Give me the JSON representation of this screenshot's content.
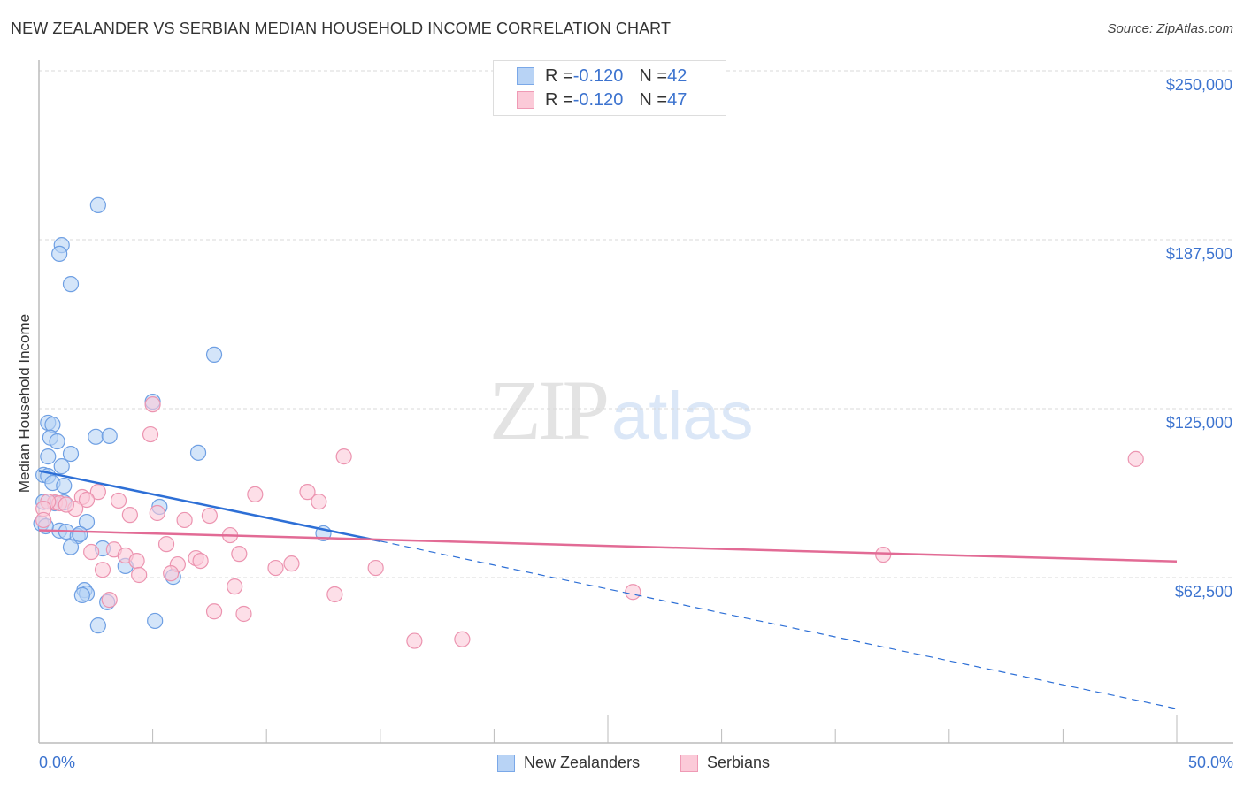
{
  "header": {
    "title": "NEW ZEALANDER VS SERBIAN MEDIAN HOUSEHOLD INCOME CORRELATION CHART",
    "source": "Source: ZipAtlas.com"
  },
  "watermark": {
    "zip": "ZIP",
    "atlas": "atlas"
  },
  "legend_top": {
    "rows": [
      {
        "series": "New Zealanders",
        "r_label": "R = ",
        "r_value": "-0.120",
        "n_label": "N = ",
        "n_value": "42",
        "color": "#b8d3f5"
      },
      {
        "series": "Serbians",
        "r_label": "R = ",
        "r_value": "-0.120",
        "n_label": "N = ",
        "n_value": "47",
        "color": "#fbcad8"
      }
    ]
  },
  "legend_bottom": {
    "items": [
      {
        "label": "New Zealanders",
        "color": "#b8d3f5"
      },
      {
        "label": "Serbians",
        "color": "#fbcad8"
      }
    ]
  },
  "axes": {
    "ylabel": "Median Household Income",
    "y_ticks": [
      "$250,000",
      "$187,500",
      "$125,000",
      "$62,500"
    ],
    "x_ticks": [
      "0.0%",
      "50.0%"
    ]
  },
  "colors": {
    "blue_fill": "#b8d3f5",
    "blue_stroke": "#6e9fe3",
    "blue_line": "#2d6fd6",
    "pink_fill": "#fbcad8",
    "pink_stroke": "#ec94b0",
    "pink_line": "#e26b95",
    "tick_label": "#3c73cf",
    "grid": "#d8d8d8"
  },
  "chart_data": {
    "type": "scatter",
    "title": "NEW ZEALANDER VS SERBIAN MEDIAN HOUSEHOLD INCOME CORRELATION CHART",
    "xlabel": "",
    "ylabel": "Median Household Income",
    "xlim": [
      0,
      50
    ],
    "ylim": [
      10000,
      255000
    ],
    "x_tick_labels": [
      "0.0%",
      "50.0%"
    ],
    "y_tick_values": [
      62500,
      125000,
      187500,
      250000
    ],
    "y_tick_labels": [
      "$62,500",
      "$125,000",
      "$187,500",
      "$250,000"
    ],
    "grid": "horizontal dashed",
    "legend_position": "top-center and bottom-center",
    "series": [
      {
        "name": "New Zealanders",
        "R": -0.12,
        "N": 42,
        "points": [
          [
            2.6,
            200300
          ],
          [
            1.0,
            185500
          ],
          [
            0.9,
            182300
          ],
          [
            1.4,
            171100
          ],
          [
            7.7,
            145000
          ],
          [
            5.0,
            127600
          ],
          [
            0.4,
            119800
          ],
          [
            0.6,
            119100
          ],
          [
            2.5,
            114600
          ],
          [
            3.1,
            114900
          ],
          [
            0.5,
            114300
          ],
          [
            0.8,
            112900
          ],
          [
            1.4,
            108300
          ],
          [
            7.0,
            108700
          ],
          [
            0.4,
            107300
          ],
          [
            1.0,
            103700
          ],
          [
            0.2,
            100500
          ],
          [
            0.4,
            100100
          ],
          [
            0.6,
            97500
          ],
          [
            1.1,
            96500
          ],
          [
            0.7,
            90000
          ],
          [
            1.1,
            90300
          ],
          [
            5.3,
            88700
          ],
          [
            0.1,
            82500
          ],
          [
            2.1,
            83100
          ],
          [
            0.9,
            79900
          ],
          [
            1.2,
            79500
          ],
          [
            1.7,
            77900
          ],
          [
            1.8,
            78600
          ],
          [
            12.5,
            78900
          ],
          [
            1.4,
            73800
          ],
          [
            2.8,
            73300
          ],
          [
            3.8,
            66800
          ],
          [
            5.9,
            62800
          ],
          [
            2.0,
            57900
          ],
          [
            2.1,
            56600
          ],
          [
            1.9,
            56000
          ],
          [
            3.0,
            53400
          ],
          [
            2.6,
            44800
          ],
          [
            5.1,
            46500
          ],
          [
            0.2,
            90500
          ],
          [
            0.3,
            81500
          ]
        ],
        "trend": {
          "x": [
            0,
            15,
            50
          ],
          "y": [
            102000,
            76000,
            14000
          ],
          "solid_until": 15
        }
      },
      {
        "name": "Serbians",
        "R": -0.12,
        "N": 47,
        "points": [
          [
            5.0,
            126600
          ],
          [
            4.9,
            115500
          ],
          [
            13.4,
            107300
          ],
          [
            48.2,
            106400
          ],
          [
            11.8,
            94200
          ],
          [
            9.5,
            93300
          ],
          [
            2.6,
            94200
          ],
          [
            1.9,
            92300
          ],
          [
            2.1,
            91300
          ],
          [
            3.5,
            91000
          ],
          [
            12.3,
            90600
          ],
          [
            0.7,
            90300
          ],
          [
            0.9,
            90000
          ],
          [
            0.4,
            90600
          ],
          [
            1.6,
            88000
          ],
          [
            4.0,
            85700
          ],
          [
            7.5,
            85400
          ],
          [
            5.2,
            86400
          ],
          [
            6.4,
            83800
          ],
          [
            0.2,
            88000
          ],
          [
            8.4,
            78200
          ],
          [
            5.6,
            74900
          ],
          [
            3.3,
            72900
          ],
          [
            2.3,
            72000
          ],
          [
            8.8,
            71300
          ],
          [
            3.8,
            70700
          ],
          [
            4.3,
            68700
          ],
          [
            6.9,
            69700
          ],
          [
            7.1,
            68700
          ],
          [
            6.1,
            67400
          ],
          [
            10.4,
            66100
          ],
          [
            11.1,
            67700
          ],
          [
            14.8,
            66100
          ],
          [
            37.1,
            71000
          ],
          [
            2.8,
            65400
          ],
          [
            4.4,
            63500
          ],
          [
            5.8,
            64100
          ],
          [
            8.6,
            59200
          ],
          [
            13.0,
            56300
          ],
          [
            26.1,
            57200
          ],
          [
            3.1,
            54300
          ],
          [
            7.7,
            50000
          ],
          [
            9.0,
            49100
          ],
          [
            16.5,
            39100
          ],
          [
            18.6,
            39700
          ],
          [
            0.2,
            83800
          ],
          [
            1.2,
            89500
          ]
        ],
        "trend": {
          "x": [
            0,
            50
          ],
          "y": [
            80000,
            68500
          ]
        }
      }
    ]
  }
}
